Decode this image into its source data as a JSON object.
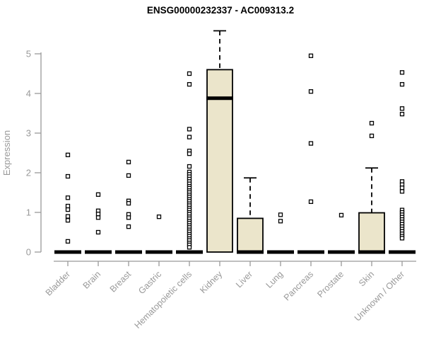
{
  "chart_data": {
    "type": "boxplot",
    "title": "ENSG00000232337 - AC009313.2",
    "xlabel": "",
    "ylabel": "Expression",
    "ylim": [
      0,
      5.7
    ],
    "y_ticks": [
      0,
      1,
      2,
      3,
      4,
      5
    ],
    "grid": false,
    "legend": "none",
    "categories": [
      "Bladder",
      "Brain",
      "Breast",
      "Gastric",
      "Hematopoietic cells",
      "Kidney",
      "Liver",
      "Lung",
      "Pancreas",
      "Prostate",
      "Skin",
      "Unknown / Other"
    ],
    "colors": {
      "box_fill": "#ebe5cb",
      "box_border": "#000000",
      "median": "#000000",
      "axis": "#999999",
      "tick_label": "#999999",
      "title": "#000000",
      "outlier_fill": "#ffffff",
      "outlier_border": "#000000",
      "background": "#ffffff"
    },
    "series": [
      {
        "category": "Bladder",
        "q1": 0,
        "median": 0,
        "q3": 0,
        "whisker_low": 0,
        "whisker_high": 0,
        "outliers": [
          2.45,
          1.91,
          1.37,
          1.16,
          1.07,
          0.9,
          0.8,
          0.27
        ]
      },
      {
        "category": "Brain",
        "q1": 0,
        "median": 0,
        "q3": 0,
        "whisker_low": 0,
        "whisker_high": 0,
        "outliers": [
          1.45,
          1.04,
          0.96,
          0.87,
          0.5
        ]
      },
      {
        "category": "Breast",
        "q1": 0,
        "median": 0,
        "q3": 0,
        "whisker_low": 0,
        "whisker_high": 0,
        "outliers": [
          2.27,
          1.93,
          1.29,
          1.23,
          0.95,
          0.87,
          0.64
        ]
      },
      {
        "category": "Gastric",
        "q1": 0,
        "median": 0,
        "q3": 0,
        "whisker_low": 0,
        "whisker_high": 0,
        "outliers": [
          0.89
        ]
      },
      {
        "category": "Hematopoietic cells",
        "q1": 0,
        "median": 0,
        "q3": 0,
        "whisker_low": 0,
        "whisker_high": 0,
        "outliers": [
          4.5,
          4.23,
          3.1,
          2.9,
          2.55,
          2.48,
          2.16,
          2.02,
          1.96,
          1.9,
          1.84,
          1.78,
          1.72,
          1.66,
          1.61,
          1.55,
          1.5,
          1.44,
          1.39,
          1.33,
          1.28,
          1.22,
          1.17,
          1.11,
          1.06,
          1.0,
          0.95,
          0.89,
          0.84,
          0.78,
          0.73,
          0.67,
          0.62,
          0.56,
          0.51,
          0.45,
          0.4,
          0.34,
          0.29,
          0.23,
          0.18,
          0.12
        ]
      },
      {
        "category": "Kidney",
        "q1": 0,
        "median": 3.88,
        "q3": 4.6,
        "whisker_low": 0,
        "whisker_high": 5.58,
        "outliers": []
      },
      {
        "category": "Liver",
        "q1": 0,
        "median": 0,
        "q3": 0.85,
        "whisker_low": 0,
        "whisker_high": 1.87,
        "outliers": []
      },
      {
        "category": "Lung",
        "q1": 0,
        "median": 0,
        "q3": 0,
        "whisker_low": 0,
        "whisker_high": 0,
        "outliers": [
          0.94,
          0.78
        ]
      },
      {
        "category": "Pancreas",
        "q1": 0,
        "median": 0,
        "q3": 0,
        "whisker_low": 0,
        "whisker_high": 0,
        "outliers": [
          4.95,
          4.05,
          2.74,
          1.27
        ]
      },
      {
        "category": "Prostate",
        "q1": 0,
        "median": 0,
        "q3": 0,
        "whisker_low": 0,
        "whisker_high": 0,
        "outliers": [
          0.93
        ]
      },
      {
        "category": "Skin",
        "q1": 0,
        "median": 0,
        "q3": 0.99,
        "whisker_low": 0,
        "whisker_high": 2.12,
        "outliers": [
          3.25,
          2.93
        ]
      },
      {
        "category": "Unknown / Other",
        "q1": 0,
        "median": 0,
        "q3": 0,
        "whisker_low": 0,
        "whisker_high": 0,
        "outliers": [
          4.53,
          4.23,
          3.62,
          3.48,
          1.78,
          1.7,
          1.62,
          1.53,
          1.06,
          1.0,
          0.94,
          0.88,
          0.82,
          0.76,
          0.7,
          0.64,
          0.58,
          0.52,
          0.46,
          0.4,
          0.35
        ]
      }
    ]
  }
}
